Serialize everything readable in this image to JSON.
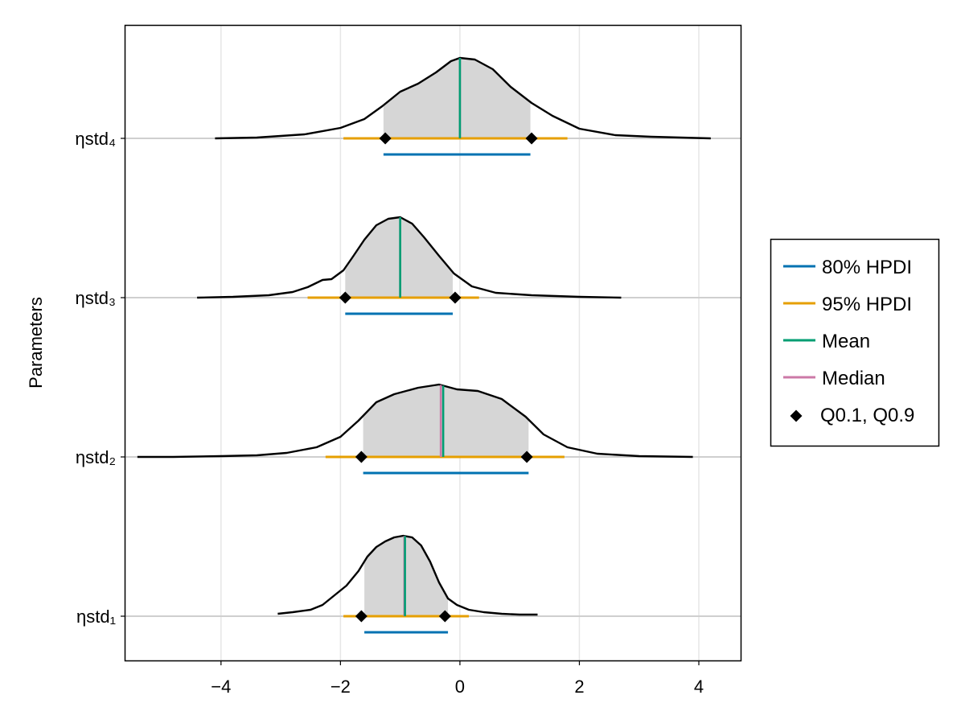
{
  "chart_data": {
    "type": "density",
    "title": "",
    "xlabel": "",
    "ylabel": "Parameters",
    "xlim": [
      -5.6,
      4.7
    ],
    "xticks": [
      -4,
      -2,
      0,
      2,
      4
    ],
    "xtick_labels": [
      "−4",
      "−2",
      "0",
      "2",
      "4"
    ],
    "grid": true,
    "legend_position": "right",
    "legend": [
      {
        "label": "80% HPDI",
        "kind": "line",
        "color": "#0072B2"
      },
      {
        "label": "95% HPDI",
        "kind": "line",
        "color": "#E69F00"
      },
      {
        "label": "Mean",
        "kind": "line",
        "color": "#009E73"
      },
      {
        "label": "Median",
        "kind": "line",
        "color": "#CC79A7"
      },
      {
        "label": "Q0.1, Q0.9",
        "kind": "marker",
        "color": "#000000"
      }
    ],
    "colors": {
      "hpdi80": "#0072B2",
      "hpdi95": "#E69F00",
      "mean": "#009E73",
      "median": "#CC79A7",
      "fill": "#D6D6D6",
      "density": "#000000"
    },
    "parameters": [
      {
        "name": "ηstd₁",
        "range": [
          -3.05,
          1.3
        ],
        "density": [
          [
            -3.05,
            0.03
          ],
          [
            -2.8,
            0.05
          ],
          [
            -2.5,
            0.08
          ],
          [
            -2.3,
            0.14
          ],
          [
            -2.1,
            0.26
          ],
          [
            -1.9,
            0.38
          ],
          [
            -1.7,
            0.56
          ],
          [
            -1.55,
            0.74
          ],
          [
            -1.4,
            0.86
          ],
          [
            -1.25,
            0.93
          ],
          [
            -1.1,
            0.98
          ],
          [
            -0.95,
            1.0
          ],
          [
            -0.8,
            0.98
          ],
          [
            -0.65,
            0.88
          ],
          [
            -0.5,
            0.68
          ],
          [
            -0.35,
            0.42
          ],
          [
            -0.2,
            0.22
          ],
          [
            -0.05,
            0.14
          ],
          [
            0.15,
            0.08
          ],
          [
            0.4,
            0.05
          ],
          [
            0.7,
            0.03
          ],
          [
            1.0,
            0.02
          ],
          [
            1.3,
            0.02
          ]
        ],
        "hpdi80": [
          -1.6,
          -0.2
        ],
        "hpdi95": [
          -1.95,
          0.15
        ],
        "mean": -0.92,
        "median": -0.93,
        "q10": -1.65,
        "q90": -0.25
      },
      {
        "name": "ηstd₂",
        "range": [
          -5.4,
          3.9
        ],
        "density": [
          [
            -5.4,
            0.0
          ],
          [
            -4.8,
            0.0
          ],
          [
            -4.0,
            0.01
          ],
          [
            -3.4,
            0.02
          ],
          [
            -2.9,
            0.05
          ],
          [
            -2.4,
            0.12
          ],
          [
            -2.0,
            0.25
          ],
          [
            -1.7,
            0.45
          ],
          [
            -1.4,
            0.68
          ],
          [
            -1.1,
            0.78
          ],
          [
            -0.7,
            0.86
          ],
          [
            -0.35,
            0.9
          ],
          [
            -0.05,
            0.84
          ],
          [
            0.3,
            0.82
          ],
          [
            0.7,
            0.72
          ],
          [
            1.1,
            0.5
          ],
          [
            1.4,
            0.28
          ],
          [
            1.8,
            0.12
          ],
          [
            2.3,
            0.04
          ],
          [
            3.0,
            0.01
          ],
          [
            3.9,
            0.0
          ]
        ],
        "hpdi80": [
          -1.62,
          1.15
        ],
        "hpdi95": [
          -2.25,
          1.75
        ],
        "mean": -0.28,
        "median": -0.32,
        "q10": -1.65,
        "q90": 1.12
      },
      {
        "name": "ηstd₃",
        "range": [
          -4.4,
          2.7
        ],
        "density": [
          [
            -4.4,
            0.0
          ],
          [
            -3.8,
            0.01
          ],
          [
            -3.2,
            0.03
          ],
          [
            -2.8,
            0.07
          ],
          [
            -2.55,
            0.13
          ],
          [
            -2.3,
            0.22
          ],
          [
            -2.15,
            0.23
          ],
          [
            -1.95,
            0.34
          ],
          [
            -1.8,
            0.5
          ],
          [
            -1.6,
            0.72
          ],
          [
            -1.4,
            0.9
          ],
          [
            -1.2,
            0.98
          ],
          [
            -1.0,
            1.0
          ],
          [
            -0.8,
            0.92
          ],
          [
            -0.6,
            0.75
          ],
          [
            -0.35,
            0.52
          ],
          [
            -0.1,
            0.3
          ],
          [
            0.2,
            0.14
          ],
          [
            0.6,
            0.06
          ],
          [
            1.2,
            0.03
          ],
          [
            2.0,
            0.01
          ],
          [
            2.7,
            0.0
          ]
        ],
        "hpdi80": [
          -1.92,
          -0.12
        ],
        "hpdi95": [
          -2.55,
          0.32
        ],
        "mean": -1.0,
        "median": -1.0,
        "q10": -1.92,
        "q90": -0.08
      },
      {
        "name": "ηstd₄",
        "range": [
          -4.1,
          4.2
        ],
        "density": [
          [
            -4.1,
            0.0
          ],
          [
            -3.4,
            0.01
          ],
          [
            -2.6,
            0.05
          ],
          [
            -2.0,
            0.13
          ],
          [
            -1.6,
            0.24
          ],
          [
            -1.3,
            0.4
          ],
          [
            -1.0,
            0.58
          ],
          [
            -0.7,
            0.68
          ],
          [
            -0.4,
            0.82
          ],
          [
            -0.15,
            0.96
          ],
          [
            0.0,
            1.0
          ],
          [
            0.25,
            0.98
          ],
          [
            0.55,
            0.86
          ],
          [
            0.85,
            0.64
          ],
          [
            1.2,
            0.44
          ],
          [
            1.55,
            0.28
          ],
          [
            2.0,
            0.12
          ],
          [
            2.6,
            0.04
          ],
          [
            3.2,
            0.02
          ],
          [
            4.2,
            0.0
          ]
        ],
        "hpdi80": [
          -1.28,
          1.18
        ],
        "hpdi95": [
          -1.95,
          1.8
        ],
        "mean": 0.0,
        "median": 0.0,
        "q10": -1.25,
        "q90": 1.2
      }
    ]
  }
}
